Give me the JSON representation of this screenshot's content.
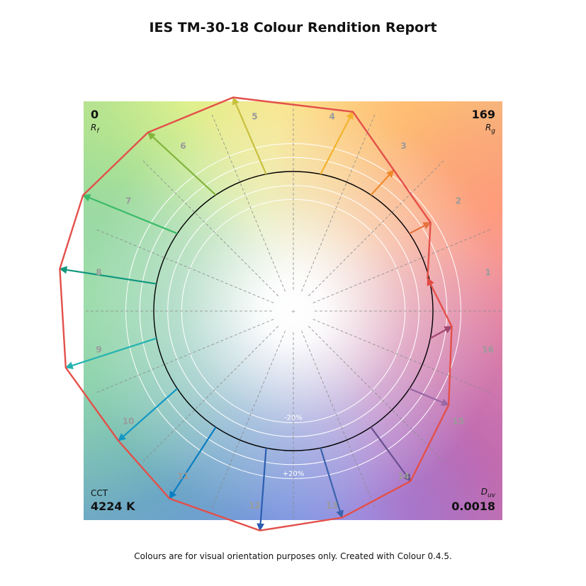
{
  "title": "IES TM-30-18 Colour Rendition Report",
  "footer": "Colours are for visual orientation purposes only. Created with Colour 0.4.5.",
  "corners": {
    "rf_value": "0",
    "rf_label_main": "R",
    "rf_label_sub": "f",
    "rg_value": "169",
    "rg_label_main": "R",
    "rg_label_sub": "g",
    "cct_label": "CCT",
    "cct_value": "4224 K",
    "duv_label_main": "D",
    "duv_label_sub": "uv",
    "duv_value": "0.0018"
  },
  "chart_data": {
    "type": "polar-vector",
    "description_free": true,
    "ring_labels": {
      "inner": "-20%",
      "outer": "+20%"
    },
    "hue_bins": [
      "1",
      "2",
      "3",
      "4",
      "5",
      "6",
      "7",
      "8",
      "9",
      "10",
      "11",
      "12",
      "13",
      "14",
      "15",
      "16"
    ],
    "reference_radius": 1.0,
    "test_radius": [
      0.99,
      1.17,
      1.24,
      1.49,
      1.59,
      1.65,
      1.72,
      1.7,
      1.68,
      1.56,
      1.61,
      1.59,
      1.52,
      1.48,
      1.3,
      1.14
    ],
    "hue_shift_deg": [
      2.5,
      -0.9,
      -1.7,
      -5.4,
      4.5,
      5.4,
      4.9,
      1.0,
      2.7,
      2.8,
      0.3,
      2.6,
      2.0,
      0.8,
      2.6,
      5.7
    ],
    "arrow_colors": [
      "#e0443c",
      "#e57340",
      "#ef8a2c",
      "#f3b22c",
      "#c8c03f",
      "#83b43d",
      "#3dbb6a",
      "#11977e",
      "#23b3b0",
      "#1298c4",
      "#0a7ec2",
      "#2c5db0",
      "#3a63ac",
      "#6a4f8f",
      "#9a67a6",
      "#a2466f"
    ],
    "scale_circles": [
      0.8,
      0.9,
      1.0,
      1.1,
      1.2
    ],
    "gridlines": true,
    "test_polygon_color": "#e3504a",
    "reference_circle_color": "#000000"
  }
}
